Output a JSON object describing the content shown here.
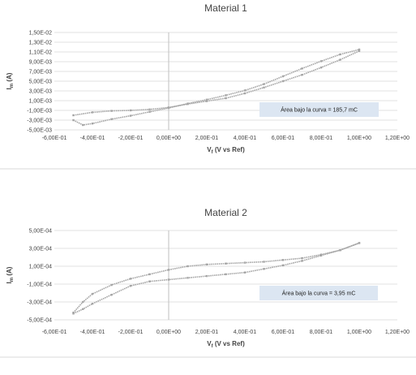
{
  "chart_data": [
    {
      "type": "scatter",
      "title": "Material 1",
      "xlabel": "Vf (V vs Ref)",
      "xlabel_main": "V",
      "xlabel_sub": "f",
      "xlabel_rest": " (V vs Ref)",
      "ylabel_main": "I",
      "ylabel_sub": "m",
      "ylabel_rest": " (A)",
      "xlim": [
        -0.6,
        1.2
      ],
      "ylim": [
        -0.005,
        0.015
      ],
      "x_ticks": [
        "-6,00E-01",
        "-4,00E-01",
        "-2,00E-01",
        "0,00E+00",
        "2,00E-01",
        "4,00E-01",
        "6,00E-01",
        "8,00E-01",
        "1,00E+00",
        "1,20E+00"
      ],
      "y_ticks": [
        "1,50E-02",
        "1,30E-02",
        "1,10E-02",
        "9,00E-03",
        "7,00E-03",
        "5,00E-03",
        "3,00E-03",
        "1,00E-03",
        "-1,00E-03",
        "-3,00E-03",
        "-5,00E-03"
      ],
      "grid": "horizontal",
      "annotation": "Área bajo la curva = 185,7 mC",
      "series": [
        {
          "x": [
            -0.5,
            -0.4,
            -0.3,
            -0.2,
            -0.1,
            0.0,
            0.1,
            0.2,
            0.3,
            0.4,
            0.5,
            0.6,
            0.7,
            0.8,
            0.9,
            1.0
          ],
          "values": [
            -0.002,
            -0.0014,
            -0.0011,
            -0.001,
            -0.0008,
            -0.0004,
            0.0003,
            0.0009,
            0.0015,
            0.0025,
            0.0037,
            0.005,
            0.0063,
            0.0078,
            0.0094,
            0.0112
          ]
        },
        {
          "x": [
            -0.5,
            -0.45,
            -0.4,
            -0.3,
            -0.2,
            -0.1,
            0.0,
            0.1,
            0.2,
            0.3,
            0.4,
            0.5,
            0.6,
            0.7,
            0.8,
            0.9,
            1.0
          ],
          "values": [
            -0.003,
            -0.004,
            -0.0037,
            -0.0028,
            -0.0021,
            -0.0013,
            -0.0005,
            0.0004,
            0.0012,
            0.0021,
            0.0031,
            0.0044,
            0.006,
            0.0076,
            0.0091,
            0.0105,
            0.0115
          ]
        }
      ]
    },
    {
      "type": "scatter",
      "title": "Material 2",
      "xlabel": "Vf (V vs Ref)",
      "xlabel_main": "V",
      "xlabel_sub": "f",
      "xlabel_rest": " (V vs Ref)",
      "ylabel_main": "I",
      "ylabel_sub": "m",
      "ylabel_rest": " (A)",
      "xlim": [
        -0.6,
        1.2
      ],
      "ylim": [
        -0.0005,
        0.0005
      ],
      "x_ticks": [
        "-6,00E-01",
        "-4,00E-01",
        "-2,00E-01",
        "0,00E+00",
        "2,00E-01",
        "4,00E-01",
        "6,00E-01",
        "8,00E-01",
        "1,00E+00",
        "1,20E+00"
      ],
      "y_ticks": [
        "5,00E-04",
        "3,00E-04",
        "1,00E-04",
        "-1,00E-04",
        "-3,00E-04",
        "-5,00E-04"
      ],
      "grid": "horizontal",
      "annotation": "Área bajo la curva = 3,95 mC",
      "series": [
        {
          "x": [
            -0.5,
            -0.45,
            -0.4,
            -0.3,
            -0.2,
            -0.1,
            0.0,
            0.1,
            0.2,
            0.3,
            0.4,
            0.5,
            0.6,
            0.7,
            0.8,
            0.9,
            1.0
          ],
          "values": [
            -0.00042,
            -0.0003,
            -0.00021,
            -0.00011,
            -4e-05,
            1e-05,
            6e-05,
            0.0001,
            0.00012,
            0.00013,
            0.00014,
            0.00015,
            0.00017,
            0.00019,
            0.00023,
            0.00028,
            0.00036
          ]
        },
        {
          "x": [
            -0.5,
            -0.45,
            -0.4,
            -0.3,
            -0.2,
            -0.1,
            0.0,
            0.1,
            0.2,
            0.3,
            0.4,
            0.5,
            0.6,
            0.7,
            0.8,
            0.9,
            1.0
          ],
          "values": [
            -0.00043,
            -0.00038,
            -0.00032,
            -0.00022,
            -0.00012,
            -7e-05,
            -5e-05,
            -3e-05,
            -1e-05,
            1e-05,
            3e-05,
            7e-05,
            0.00011,
            0.00016,
            0.00022,
            0.00028,
            0.00036
          ]
        }
      ]
    }
  ],
  "colors": {
    "marker": "#a6a6a6",
    "grid": "#d9d9d9",
    "axis": "#bfbfbf",
    "annotation_fill": "#dce6f2",
    "text": "#444444",
    "separator": "#d9d9d9"
  }
}
